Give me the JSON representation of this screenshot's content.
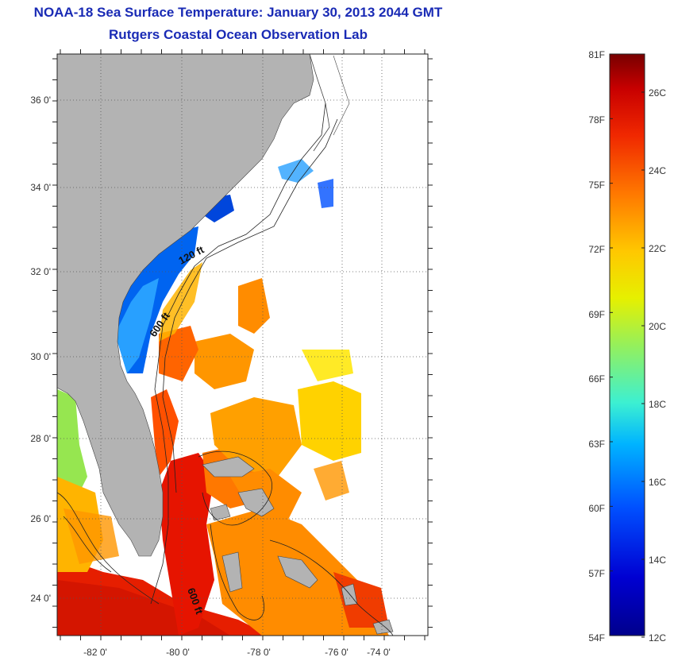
{
  "title": {
    "line1": "NOAA-18 Sea Surface Temperature:  January 30, 2013 2044 GMT",
    "line2": "Rutgers Coastal Ocean Observation Lab"
  },
  "map": {
    "lon_range": [
      -83,
      -73
    ],
    "lat_range": [
      23,
      37
    ],
    "lat_labels": [
      {
        "value": 36,
        "text": "36 0'"
      },
      {
        "value": 34,
        "text": "34 0'"
      },
      {
        "value": 32,
        "text": "32 0'"
      },
      {
        "value": 30,
        "text": "30 0'"
      },
      {
        "value": 28,
        "text": "28 0'"
      },
      {
        "value": 26,
        "text": "26 0'"
      },
      {
        "value": 24,
        "text": "24 0'"
      }
    ],
    "lon_labels": [
      {
        "value": -82,
        "text": "-82 0'"
      },
      {
        "value": -80,
        "text": "-80 0'"
      },
      {
        "value": -78,
        "text": "-78 0'"
      },
      {
        "value": -76,
        "text": "-76 0'"
      },
      {
        "value": -74,
        "text": "-74 0'"
      }
    ],
    "contour_labels": [
      {
        "text": "120 ft"
      },
      {
        "text": "600 ft"
      },
      {
        "text": "600 ft"
      }
    ],
    "land_color": "#b3b3b3",
    "grid": "dotted"
  },
  "colorbar": {
    "range_c": [
      12,
      27
    ],
    "fahrenheit_labels": [
      "81F",
      "78F",
      "75F",
      "72F",
      "69F",
      "66F",
      "63F",
      "60F",
      "57F",
      "54F"
    ],
    "celsius_labels": [
      "26C",
      "24C",
      "22C",
      "20C",
      "18C",
      "16C",
      "14C",
      "12C"
    ],
    "colors": [
      "#7a0000",
      "#c81400",
      "#ff5a00",
      "#ffa000",
      "#ffe600",
      "#b4f03c",
      "#3cf0c8",
      "#00b4ff",
      "#0050ff",
      "#0000c8",
      "#00008c"
    ]
  }
}
